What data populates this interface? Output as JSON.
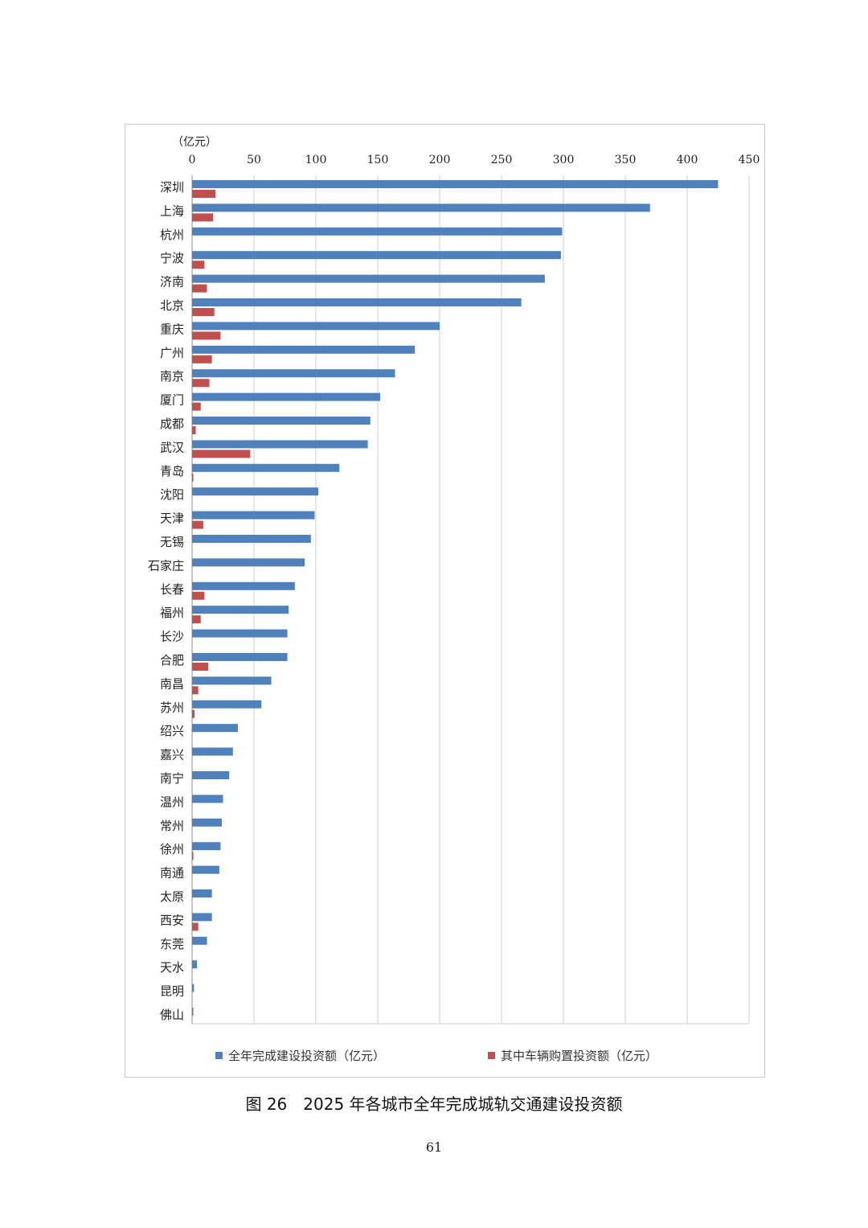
{
  "chart_data": {
    "type": "bar",
    "orientation": "horizontal",
    "unit_label": "（亿元）",
    "xlim": [
      0,
      450
    ],
    "x_ticks": [
      0,
      50,
      100,
      150,
      200,
      250,
      300,
      350,
      400,
      450
    ],
    "grid": true,
    "legend_position": "bottom",
    "categories": [
      "深圳",
      "上海",
      "杭州",
      "宁波",
      "济南",
      "北京",
      "重庆",
      "广州",
      "南京",
      "厦门",
      "成都",
      "武汉",
      "青岛",
      "沈阳",
      "天津",
      "无锡",
      "石家庄",
      "长春",
      "福州",
      "长沙",
      "合肥",
      "南昌",
      "苏州",
      "绍兴",
      "嘉兴",
      "南宁",
      "温州",
      "常州",
      "徐州",
      "南通",
      "太原",
      "西安",
      "东莞",
      "天水",
      "昆明",
      "佛山"
    ],
    "series": [
      {
        "name": "全年完成建设投资额（亿元）",
        "color": "#4f81bd",
        "values": [
          425,
          370,
          299,
          298,
          285,
          266,
          200,
          180,
          164,
          152,
          144,
          142,
          119,
          102,
          99,
          96,
          91,
          83,
          78,
          77,
          77,
          64,
          56,
          37,
          33,
          30,
          25,
          24,
          23,
          22,
          16,
          16,
          12,
          4,
          1.5,
          1
        ]
      },
      {
        "name": "其中车辆购置投资额（亿元）",
        "color": "#c0504d",
        "values": [
          19,
          17,
          0,
          10,
          12,
          18,
          23,
          16,
          14,
          7,
          3,
          47,
          1,
          0,
          9,
          0,
          0,
          10,
          7,
          0,
          13,
          5,
          2,
          0,
          0,
          0,
          0,
          0,
          1,
          0,
          0,
          5,
          0,
          0,
          0,
          0
        ]
      }
    ]
  },
  "caption": "图 26　2025 年各城市全年完成城轨交通建设投资额",
  "page_number": "61"
}
